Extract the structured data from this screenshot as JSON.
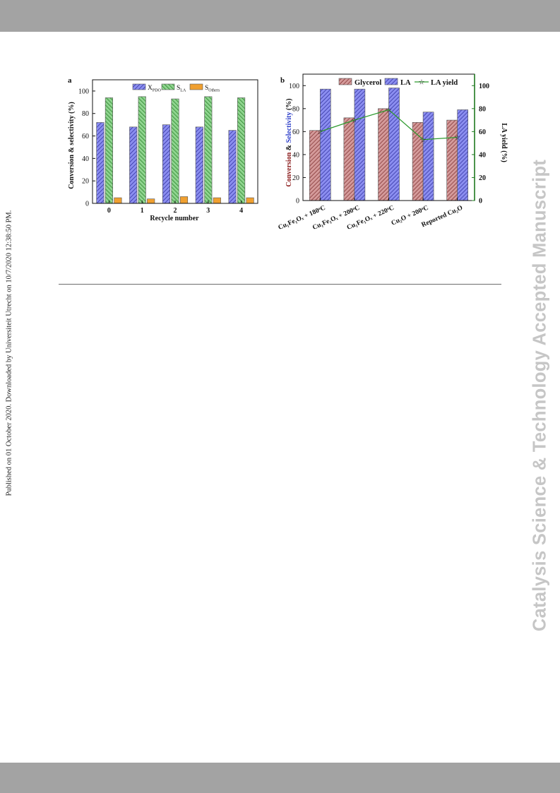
{
  "page": {
    "side_note": "Published on 01 October 2020. Downloaded by Universiteit Utrecht on 10/7/2020 12:38:50 PM.",
    "watermark": "Catalysis Science & Technology Accepted Manuscript"
  },
  "chart_data": [
    {
      "panel": "a",
      "type": "bar",
      "xlabel": "Recycle number",
      "ylabel": "Conversion & selectivity (%)",
      "categories": [
        "0",
        "1",
        "2",
        "3",
        "4"
      ],
      "ylim": [
        0,
        110
      ],
      "yticks": [
        "0",
        "20",
        "40",
        "60",
        "80",
        "100"
      ],
      "legend": [
        "X_PDO",
        "S_LA",
        "S_Others"
      ],
      "legend_placement": "top-center",
      "series": [
        {
          "name": "X_PDO",
          "values": [
            72,
            68,
            70,
            68,
            65
          ],
          "color": "#5b5bd6",
          "pattern": "hatch"
        },
        {
          "name": "S_LA",
          "values": [
            94,
            95,
            93,
            95,
            94
          ],
          "color": "#4fb04f",
          "pattern": "hatch"
        },
        {
          "name": "S_Others",
          "values": [
            5,
            4,
            6,
            5,
            5
          ],
          "color": "#f0a030",
          "pattern": "solid"
        }
      ]
    },
    {
      "panel": "b",
      "type": "bar",
      "ylabel_parts": [
        "Conversion",
        " & ",
        "Selectivity",
        " (%)"
      ],
      "y2label": "LA yield (%)",
      "categories": [
        "Cu₁Fe₁Oₓ + 180ᵒC",
        "Cu₁Fe₁Oₓ + 200ᵒC",
        "Cu₁Fe₁Oₓ + 220ᵒC",
        "Cu₂O + 200ᵒC",
        "Reported Cu₂O"
      ],
      "category_colors": [
        "#111111",
        "#2b3dc9",
        "#111111",
        "#2b3dc9",
        "#2b3dc9"
      ],
      "ylim": [
        0,
        110
      ],
      "y2lim": [
        0,
        110
      ],
      "yticks": [
        "0",
        "20",
        "40",
        "60",
        "80",
        "100"
      ],
      "y2ticks": [
        "0",
        "20",
        "40",
        "60",
        "80",
        "100"
      ],
      "legend": [
        "Glycerol",
        "LA",
        "LA yield"
      ],
      "legend_placement": "top",
      "series": [
        {
          "name": "Glycerol",
          "values": [
            61,
            72,
            80,
            68,
            70
          ],
          "color": "#b56464",
          "pattern": "hatch"
        },
        {
          "name": "LA",
          "values": [
            97,
            97,
            98,
            77,
            79
          ],
          "color": "#5b5bd6",
          "pattern": "hatch"
        },
        {
          "name": "LA yield",
          "axis": "right",
          "type": "line",
          "values": [
            60,
            70,
            79,
            53,
            55
          ],
          "color": "#2e9a2e"
        }
      ],
      "axis_colors": {
        "left": "#8a1a1a",
        "left_accent": "#2b3dc9",
        "right": "#1f7a1f"
      }
    }
  ]
}
